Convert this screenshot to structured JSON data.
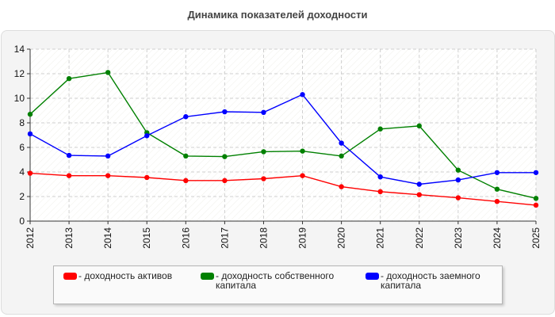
{
  "chart_data": {
    "type": "line",
    "title": "Динамика показателей доходности",
    "categories": [
      "2012",
      "2013",
      "2014",
      "2015",
      "2016",
      "2017",
      "2018",
      "2019",
      "2020",
      "2021",
      "2022",
      "2023",
      "2024",
      "2025"
    ],
    "ylim": [
      0,
      14
    ],
    "yticks": [
      "0",
      "2",
      "4",
      "6",
      "8",
      "10",
      "12",
      "14"
    ],
    "grid": true,
    "legend_position": "bottom",
    "series": [
      {
        "name": "- доходность активов",
        "color": "#ff0000",
        "values": [
          3.9,
          3.7,
          3.7,
          3.55,
          3.3,
          3.3,
          3.45,
          3.7,
          2.8,
          2.4,
          2.15,
          1.9,
          1.6,
          1.3
        ]
      },
      {
        "name": "- доходность собственного капитала",
        "color": "#008000",
        "values": [
          8.7,
          11.6,
          12.1,
          7.2,
          5.3,
          5.25,
          5.65,
          5.7,
          5.3,
          7.5,
          7.75,
          4.15,
          2.6,
          1.85
        ]
      },
      {
        "name": "- доходность заемного капитала",
        "color": "#0000ff",
        "values": [
          7.1,
          5.35,
          5.3,
          6.95,
          8.5,
          8.9,
          8.85,
          10.3,
          6.35,
          3.6,
          3.0,
          3.35,
          3.95,
          3.95
        ]
      }
    ]
  }
}
